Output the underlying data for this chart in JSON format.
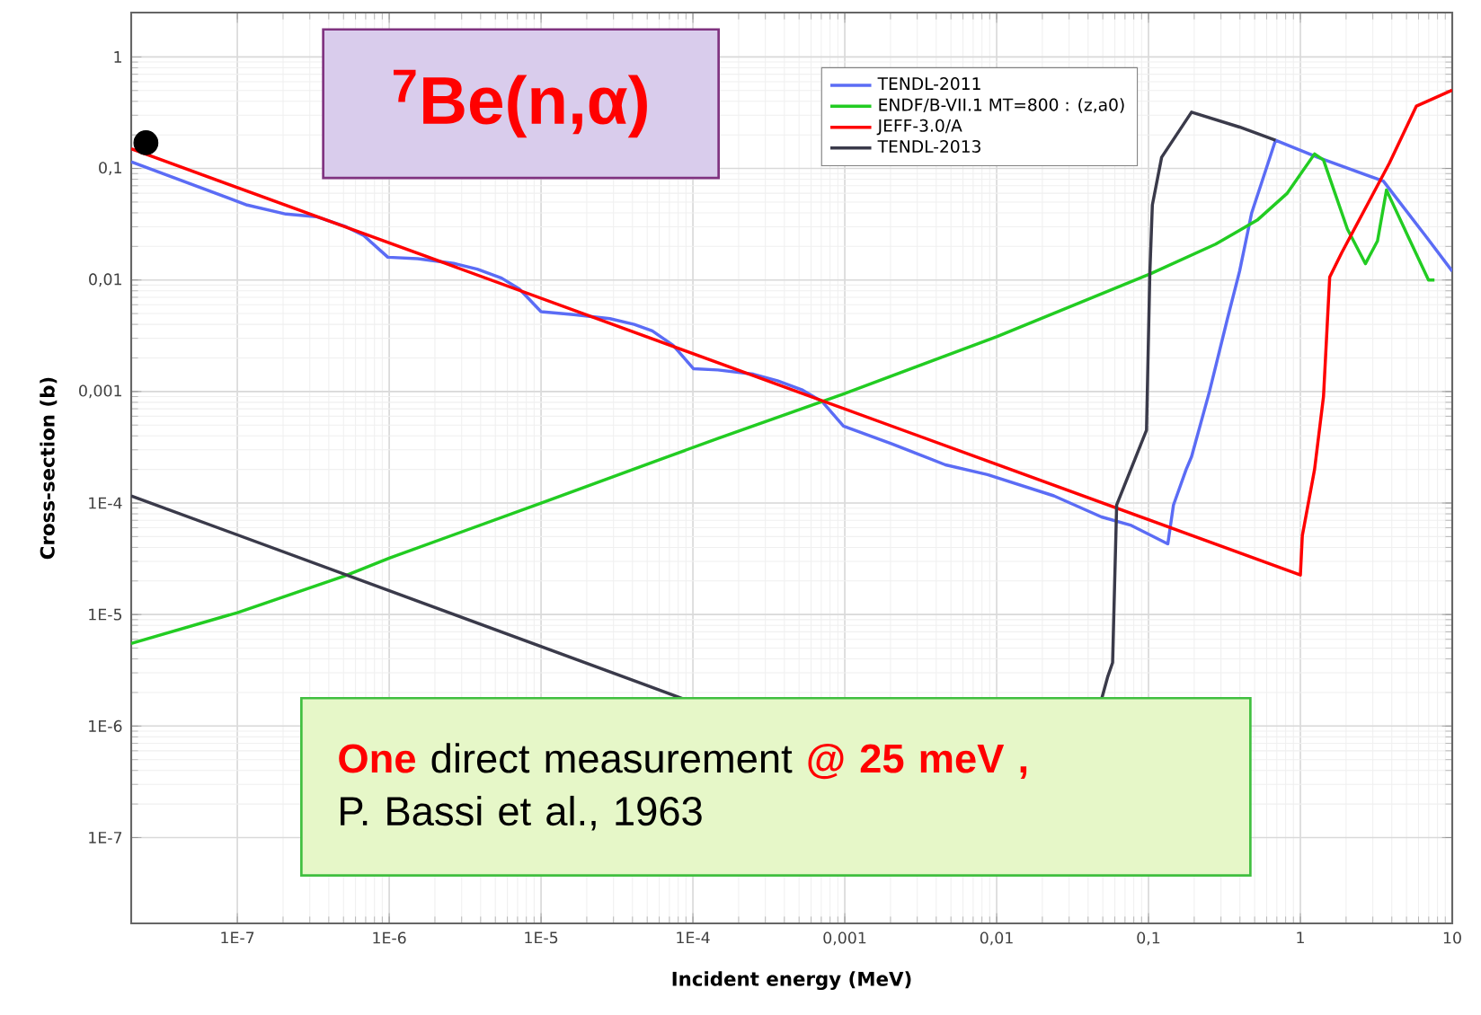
{
  "chart_data": {
    "type": "line",
    "title": "$^{7}$Be(n,α)",
    "xlabel": "Incident energy (MeV)",
    "ylabel": "Cross-section (b)",
    "log": "xy",
    "grid": true,
    "legend": "top right",
    "marker": "none",
    "xlim": [
      2e-08,
      10
    ],
    "ylim": [
      1.7e-08,
      2.5
    ],
    "xticks": [
      {
        "value": 1e-07,
        "label": "1E-7"
      },
      {
        "value": 1e-06,
        "label": "1E-6"
      },
      {
        "value": 1e-05,
        "label": "1E-5"
      },
      {
        "value": 0.0001,
        "label": "1E-4"
      },
      {
        "value": 0.001,
        "label": "0,001"
      },
      {
        "value": 0.01,
        "label": "0,01"
      },
      {
        "value": 0.1,
        "label": "0,1"
      },
      1,
      10
    ],
    "yticks": [
      {
        "value": 1e-07,
        "label": "1E-7"
      },
      {
        "value": 1e-06,
        "label": "1E-6"
      },
      {
        "value": 1e-05,
        "label": "1E-5"
      },
      {
        "value": 0.0001,
        "label": "1E-4"
      },
      {
        "value": 0.001,
        "label": "0,001"
      },
      {
        "value": 0.01,
        "label": "0,01"
      },
      {
        "value": 0.1,
        "label": "0,1"
      },
      1
    ],
    "series": [
      {
        "name": "TENDL-2011",
        "color": "#5b6cf5",
        "x": [
          2e-08,
          1.16e-07,
          2.09e-07,
          3.3e-07,
          5.2e-07,
          6.8e-07,
          9.8e-07,
          1.54e-06,
          2.66e-06,
          3.8e-06,
          5.5e-06,
          7.2e-06,
          1e-05,
          1.64e-05,
          2.84e-05,
          4.1e-05,
          5.4e-05,
          7.4e-05,
          0.000101,
          0.000146,
          0.00025,
          0.00036,
          0.00052,
          0.00071,
          0.00098,
          0.00204,
          0.0046,
          0.0087,
          0.0238,
          0.049,
          0.077,
          0.134,
          0.146,
          0.177,
          0.192,
          0.252,
          0.331,
          0.398,
          0.478,
          0.686,
          1.3,
          3.52,
          6.65,
          10
        ],
        "values": [
          0.115,
          0.047,
          0.039,
          0.037,
          0.03,
          0.025,
          0.016,
          0.0155,
          0.0141,
          0.0125,
          0.0104,
          0.0083,
          0.0052,
          0.0049,
          0.0045,
          0.004,
          0.0035,
          0.0026,
          0.0016,
          0.00156,
          0.00143,
          0.00125,
          0.00104,
          0.00081,
          0.00049,
          0.00034,
          0.00022,
          0.00018,
          0.000116,
          7.5e-05,
          6.3e-05,
          4.3e-05,
          9.6e-05,
          0.0002,
          0.00026,
          0.001,
          0.0045,
          0.012,
          0.04,
          0.179,
          0.126,
          0.077,
          0.025,
          0.012
        ]
      },
      {
        "name": "ENDF/B-VII.1  MT=800 : (z,a0)",
        "color": "#22cc22",
        "x": [
          2e-08,
          1e-07,
          5.2e-07,
          1e-06,
          1e-05,
          0.000146,
          0.00098,
          0.01,
          0.102,
          0.277,
          0.52,
          0.82,
          1.24,
          1.42,
          2.04,
          2.68,
          3.22,
          3.69,
          5.07,
          6.98,
          7.64
        ],
        "values": [
          5.5e-06,
          1.04e-05,
          2.24e-05,
          3.2e-05,
          0.0001,
          0.00038,
          0.00095,
          0.0031,
          0.0113,
          0.021,
          0.0344,
          0.06,
          0.135,
          0.119,
          0.0286,
          0.014,
          0.0224,
          0.064,
          0.0253,
          0.01,
          0.01
        ]
      },
      {
        "name": "JEFF-3.0/A",
        "color": "#ff0000",
        "x": [
          2e-08,
          1,
          1.03,
          1.24,
          1.42,
          1.56,
          1.87,
          3.86,
          5.81,
          10
        ],
        "values": [
          0.15,
          2.26e-05,
          5.1e-05,
          0.0002,
          0.0009,
          0.0106,
          0.0175,
          0.112,
          0.363,
          0.505
        ]
      },
      {
        "name": "TENDL-2013",
        "color": "#3a3a4a",
        "x": [
          2e-08,
          8.9e-05,
          0.001,
          0.049,
          0.054,
          0.058,
          0.0617,
          0.097,
          0.102,
          0.106,
          0.122,
          0.192,
          0.398,
          0.686
        ],
        "values": [
          0.000116,
          1.73e-06,
          null,
          1.73e-06,
          2.8e-06,
          3.7e-06,
          9.6e-05,
          0.00045,
          0.0113,
          0.047,
          0.126,
          0.32,
          0.235,
          0.179
        ]
      },
      {
        "type": "scatter",
        "marker": "circle",
        "color": "#000000",
        "x": [
          2.5e-08
        ],
        "values": [
          0.17
        ]
      }
    ],
    "annotations": [
      "**One** direct measurement **@ 25 meV ,**",
      "P. Bassi et al., 1963"
    ]
  }
}
